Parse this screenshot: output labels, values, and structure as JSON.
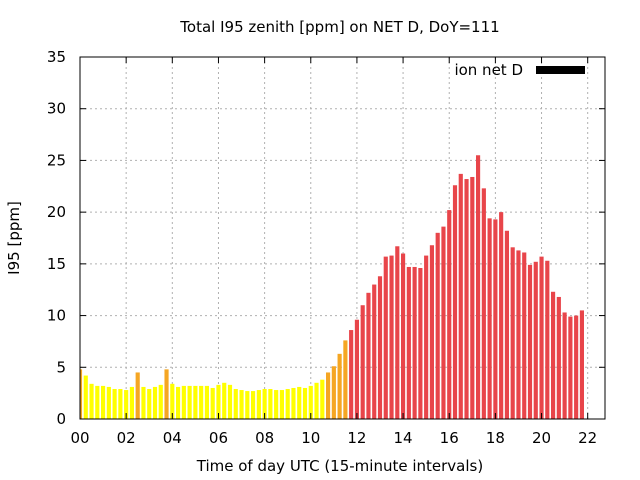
{
  "chart_data": {
    "type": "bar",
    "title": "Total I95 zenith [ppm] on NET D, DoY=111",
    "xlabel": "Time of day UTC (15-minute intervals)",
    "ylabel": "I95 [ppm]",
    "legend": {
      "label": "ion net D",
      "placement": "top-right",
      "swatch_color": "#000000"
    },
    "xlim": [
      0,
      22.75
    ],
    "ylim": [
      0,
      35
    ],
    "grid": true,
    "x_ticks": [
      "00",
      "02",
      "04",
      "06",
      "08",
      "10",
      "12",
      "14",
      "16",
      "18",
      "20",
      "22"
    ],
    "x_tick_values": [
      0,
      2,
      4,
      6,
      8,
      10,
      12,
      14,
      16,
      18,
      20,
      22
    ],
    "y_ticks": [
      "0",
      "5",
      "10",
      "15",
      "20",
      "25",
      "30",
      "35"
    ],
    "y_tick_values": [
      0,
      5,
      10,
      15,
      20,
      25,
      30,
      35
    ],
    "bar_interval_hours": 0.25,
    "color_thresholds": {
      "low_max": 4.4,
      "mid_max": 8.0
    },
    "colors": {
      "low": "#ffff00",
      "mid": "#f5a623",
      "high": "#e8454a",
      "grid": "#b0b0b0"
    },
    "values": [
      4.8,
      4.2,
      3.4,
      3.2,
      3.2,
      3.1,
      2.9,
      2.9,
      2.8,
      3.1,
      4.5,
      3.1,
      2.9,
      3.1,
      3.3,
      4.8,
      3.4,
      3.1,
      3.2,
      3.2,
      3.2,
      3.2,
      3.2,
      3.0,
      3.3,
      3.5,
      3.3,
      2.9,
      2.8,
      2.7,
      2.7,
      2.8,
      2.9,
      2.9,
      2.8,
      2.8,
      2.9,
      3.0,
      3.1,
      3.0,
      3.2,
      3.5,
      3.8,
      4.5,
      5.1,
      6.3,
      7.6,
      8.6,
      9.6,
      11.0,
      12.2,
      13.0,
      13.8,
      15.7,
      15.8,
      16.7,
      16.0,
      14.7,
      14.7,
      14.6,
      15.8,
      16.8,
      18.0,
      18.6,
      20.2,
      22.6,
      23.7,
      23.2,
      23.4,
      25.5,
      22.3,
      19.4,
      19.3,
      20.0,
      18.2,
      16.6,
      16.3,
      16.1,
      14.9,
      15.2,
      15.7,
      15.3,
      12.3,
      11.8,
      10.3,
      9.9,
      10.0,
      10.5
    ]
  }
}
